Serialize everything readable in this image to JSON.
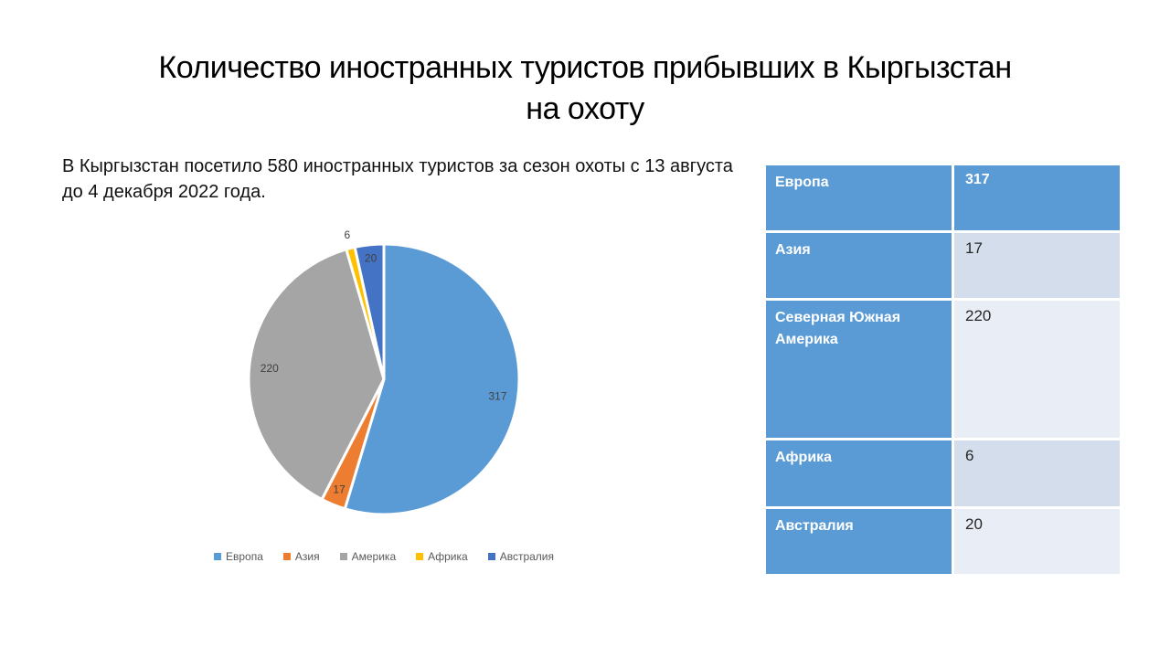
{
  "slide": {
    "title_line1": "Количество иностранных туристов прибывших в Кыргызстан",
    "title_line2": "на охоту",
    "subtitle": "В Кыргызстан посетило 580 иностранных туристов за сезон охоты с 13 августа до 4 декабря 2022 года."
  },
  "chart_data": {
    "type": "pie",
    "title": "",
    "categories": [
      "Европа",
      "Азия",
      "Америка",
      "Африка",
      "Австралия"
    ],
    "values": [
      317,
      17,
      220,
      6,
      20
    ],
    "total": 580,
    "data_labels": [
      "317",
      "17",
      "220",
      "6",
      "20"
    ],
    "colors": [
      "#5B9BD5",
      "#ED7D31",
      "#A5A5A5",
      "#FFC000",
      "#4472C4"
    ],
    "label_color": "#404040",
    "legend_position": "bottom",
    "start_angle_deg_from_top": 0,
    "direction": "clockwise",
    "label_radius": [
      0.85,
      0.88,
      0.85,
      1.1,
      0.9
    ]
  },
  "table": {
    "rows": [
      {
        "label": "Европа",
        "value": "317"
      },
      {
        "label": "Азия",
        "value": "17"
      },
      {
        "label": "Северная Южная Америка",
        "value": "220"
      },
      {
        "label": "Африка",
        "value": "6"
      },
      {
        "label": "Австралия",
        "value": "20"
      }
    ],
    "header_bg": "#5B9BD5",
    "band_dark_bg": "#D3DDEC",
    "band_light_bg": "#E9EDF5"
  }
}
